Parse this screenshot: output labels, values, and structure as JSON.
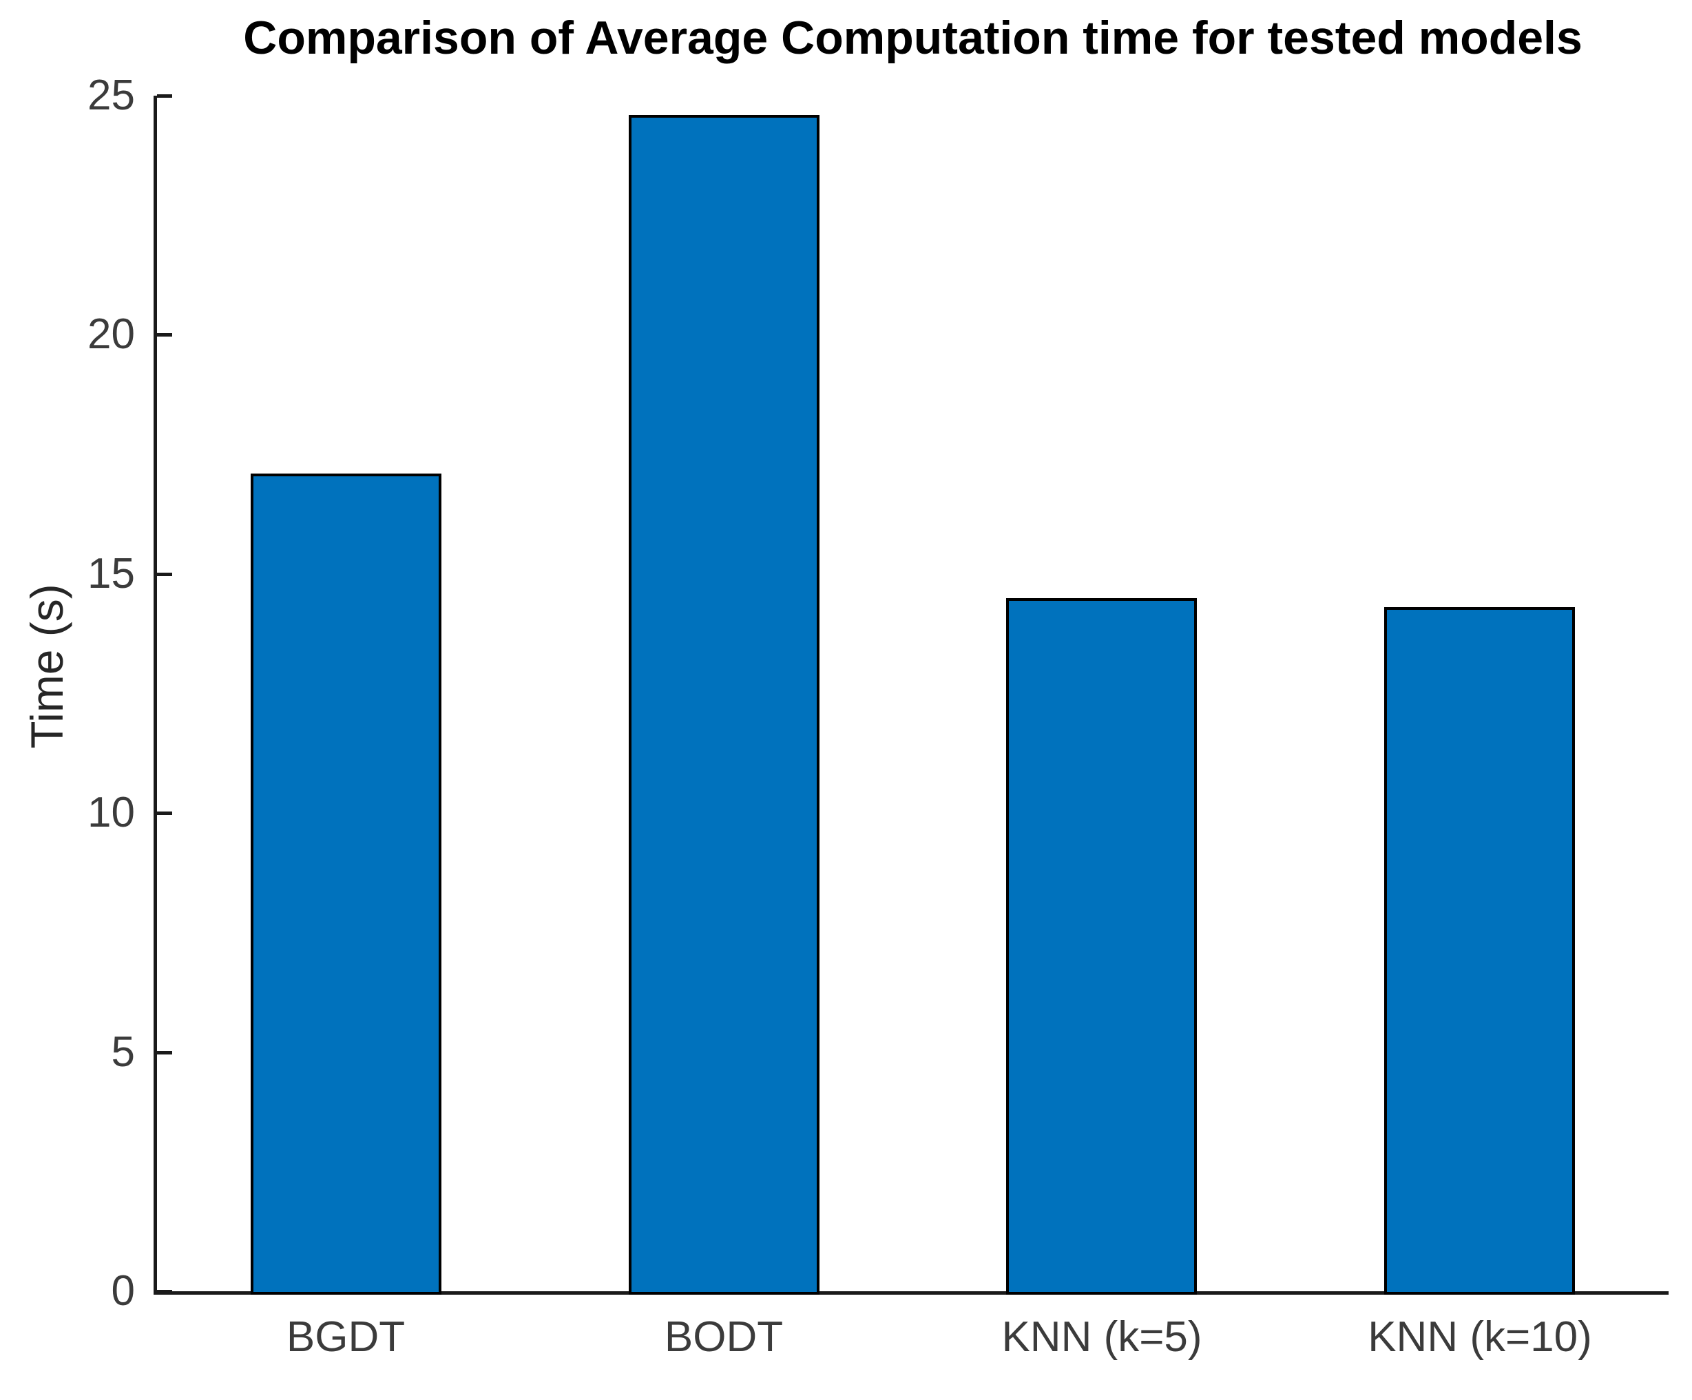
{
  "figure": {
    "background": "#ffffff"
  },
  "chart_data": {
    "type": "bar",
    "title": "Comparison of Average Computation time for tested models",
    "xlabel": "",
    "ylabel": "Time (s)",
    "categories": [
      "BGDT",
      "BODT",
      "KNN (k=5)",
      "KNN (k=10)"
    ],
    "values": [
      17.1,
      24.6,
      14.5,
      14.3
    ],
    "ylim": [
      0,
      25
    ],
    "yticks": [
      0,
      5,
      10,
      15,
      20,
      25
    ],
    "grid": false,
    "legend": "none",
    "bar_color": "#0072BD",
    "bar_edge_color": "#000000",
    "axis_color": "#1a1a1a",
    "tick_label_color": "#3b3b3b",
    "title_color": "#000000",
    "ylabel_color": "#262626"
  }
}
